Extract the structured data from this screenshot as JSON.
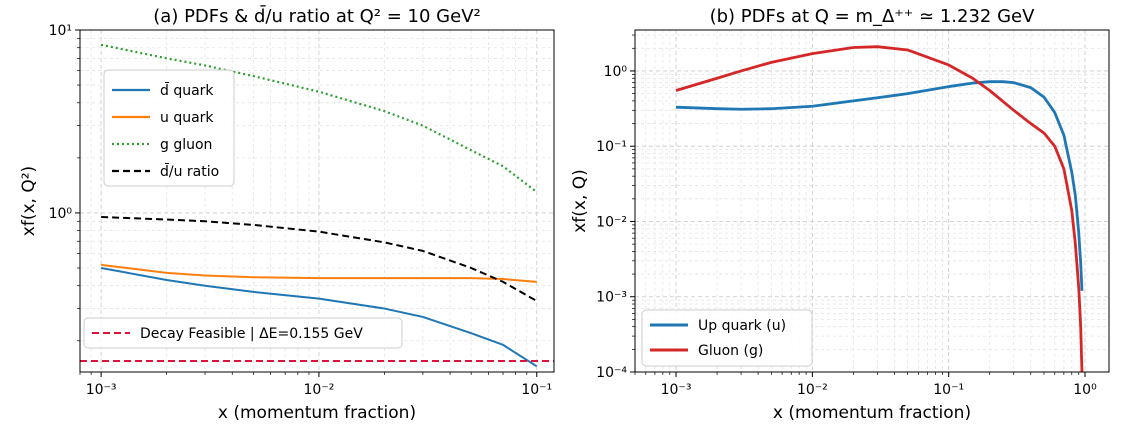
{
  "chart_data": [
    {
      "type": "line",
      "title": "(a) PDFs & d̄/u ratio at Q² = 10 GeV²",
      "xlabel": "x (momentum fraction)",
      "ylabel": "xf(x, Q²)",
      "xscale": "log",
      "yscale": "log",
      "xlim": [
        0.0008,
        0.12
      ],
      "ylim": [
        0.135,
        10
      ],
      "grid": true,
      "legend_placement": "upper-left",
      "x_ticks": [
        0.001,
        0.01,
        0.1
      ],
      "x_tick_labels": [
        "10⁻³",
        "10⁻²",
        "10⁻¹"
      ],
      "y_ticks": [
        1,
        10
      ],
      "y_tick_labels": [
        "10⁰",
        "10¹"
      ],
      "series": [
        {
          "name": "d̄ quark",
          "color": "#1f77b4",
          "style": "solid",
          "x": [
            0.001,
            0.002,
            0.003,
            0.005,
            0.01,
            0.02,
            0.03,
            0.05,
            0.07,
            0.1
          ],
          "y": [
            0.5,
            0.43,
            0.4,
            0.37,
            0.34,
            0.3,
            0.27,
            0.22,
            0.19,
            0.145
          ]
        },
        {
          "name": "u quark",
          "color": "#ff7f0e",
          "style": "solid",
          "x": [
            0.001,
            0.002,
            0.003,
            0.005,
            0.01,
            0.02,
            0.03,
            0.05,
            0.07,
            0.1
          ],
          "y": [
            0.52,
            0.47,
            0.455,
            0.445,
            0.44,
            0.44,
            0.44,
            0.44,
            0.435,
            0.42
          ]
        },
        {
          "name": "g gluon",
          "color": "#2ca02c",
          "style": "dotted",
          "x": [
            0.001,
            0.002,
            0.003,
            0.005,
            0.01,
            0.02,
            0.03,
            0.05,
            0.07,
            0.1
          ],
          "y": [
            8.3,
            7.0,
            6.4,
            5.6,
            4.6,
            3.6,
            3.0,
            2.2,
            1.8,
            1.3
          ]
        },
        {
          "name": "d̄/u ratio",
          "color": "#000000",
          "style": "dashed",
          "x": [
            0.001,
            0.002,
            0.003,
            0.005,
            0.01,
            0.02,
            0.03,
            0.05,
            0.07,
            0.1
          ],
          "y": [
            0.95,
            0.92,
            0.9,
            0.86,
            0.79,
            0.69,
            0.62,
            0.5,
            0.42,
            0.33
          ]
        },
        {
          "name": "Decay Feasible | ΔE=0.155 GeV",
          "color": "#dc143c",
          "style": "dashed",
          "x": [
            0.0008,
            0.12
          ],
          "y": [
            0.155,
            0.155
          ]
        }
      ]
    },
    {
      "type": "line",
      "title": "(b) PDFs at Q = m_Δ⁺⁺ ≃ 1.232 GeV",
      "xlabel": "x (momentum fraction)",
      "ylabel": "xf(x, Q)",
      "xscale": "log",
      "yscale": "log",
      "xlim": [
        0.0005,
        1.5
      ],
      "ylim": [
        0.0001,
        3.5
      ],
      "grid": true,
      "legend_placement": "lower-left",
      "x_ticks": [
        0.001,
        0.01,
        0.1,
        1
      ],
      "x_tick_labels": [
        "10⁻³",
        "10⁻²",
        "10⁻¹",
        "10⁰"
      ],
      "y_ticks": [
        0.0001,
        0.001,
        0.01,
        0.1,
        1
      ],
      "y_tick_labels": [
        "10⁻⁴",
        "10⁻³",
        "10⁻²",
        "10⁻¹",
        "10⁰"
      ],
      "series": [
        {
          "name": "Up quark (u)",
          "color": "#1f77b4",
          "style": "solid",
          "x": [
            0.001,
            0.002,
            0.003,
            0.005,
            0.01,
            0.02,
            0.03,
            0.05,
            0.1,
            0.15,
            0.2,
            0.25,
            0.3,
            0.4,
            0.5,
            0.6,
            0.7,
            0.8,
            0.85,
            0.9,
            0.93,
            0.95
          ],
          "y": [
            0.33,
            0.315,
            0.31,
            0.315,
            0.34,
            0.4,
            0.44,
            0.5,
            0.62,
            0.69,
            0.72,
            0.72,
            0.7,
            0.6,
            0.45,
            0.28,
            0.14,
            0.045,
            0.022,
            0.007,
            0.0028,
            0.0012
          ]
        },
        {
          "name": "Gluon (g)",
          "color": "#d62728",
          "style": "solid",
          "x": [
            0.001,
            0.002,
            0.003,
            0.005,
            0.01,
            0.02,
            0.03,
            0.05,
            0.1,
            0.15,
            0.2,
            0.3,
            0.4,
            0.5,
            0.6,
            0.7,
            0.8,
            0.85,
            0.9,
            0.93,
            0.95
          ],
          "y": [
            0.55,
            0.8,
            1.0,
            1.3,
            1.7,
            2.05,
            2.1,
            1.9,
            1.2,
            0.8,
            0.55,
            0.3,
            0.2,
            0.15,
            0.1,
            0.05,
            0.014,
            0.005,
            0.0013,
            0.0004,
            0.0001
          ]
        }
      ]
    }
  ]
}
